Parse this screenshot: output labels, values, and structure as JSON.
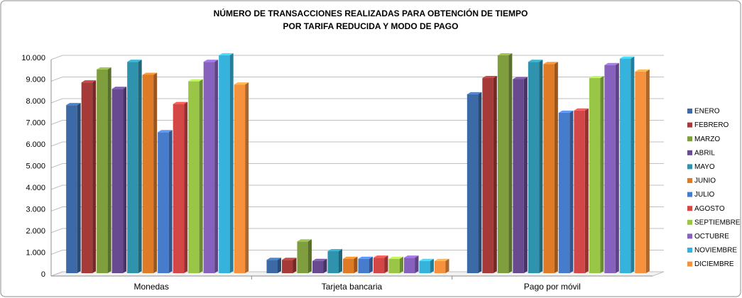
{
  "chart_data": {
    "type": "bar3d",
    "title": "NÚMERO DE TRANSACCIONES REALIZADAS PARA OBTENCIÓN DE TIEMPO",
    "subtitle": "POR TARIFA REDUCIDA Y MODO DE PAGO",
    "categories": [
      "Monedas",
      "Tarjeta bancaria",
      "Pago por móvil"
    ],
    "series": [
      {
        "name": "ENERO",
        "color": "#3b6aa6",
        "values": [
          7700,
          550,
          8200
        ]
      },
      {
        "name": "FEBRERO",
        "color": "#a63a38",
        "values": [
          8750,
          550,
          8950
        ]
      },
      {
        "name": "MARZO",
        "color": "#7f9f3e",
        "values": [
          9350,
          1400,
          10000
        ]
      },
      {
        "name": "ABRIL",
        "color": "#674a8f",
        "values": [
          8450,
          500,
          8900
        ]
      },
      {
        "name": "MAYO",
        "color": "#2f93ad",
        "values": [
          9700,
          950,
          9700
        ]
      },
      {
        "name": "JUNIO",
        "color": "#df7a26",
        "values": [
          9100,
          600,
          9600
        ]
      },
      {
        "name": "JULIO",
        "color": "#477ccc",
        "values": [
          6450,
          600,
          7350
        ]
      },
      {
        "name": "AGOSTO",
        "color": "#d34846",
        "values": [
          7750,
          650,
          7450
        ]
      },
      {
        "name": "SEPTIEMBRE",
        "color": "#9ac648",
        "values": [
          8800,
          600,
          8950
        ]
      },
      {
        "name": "OCTUBRE",
        "color": "#8661bd",
        "values": [
          9700,
          650,
          9550
        ]
      },
      {
        "name": "NOVIEMBRE",
        "color": "#35b3dc",
        "values": [
          10000,
          500,
          9850
        ]
      },
      {
        "name": "DICIEMBRE",
        "color": "#f6923e",
        "values": [
          8650,
          500,
          9250
        ]
      }
    ],
    "ylim": [
      0,
      10000
    ],
    "yticks": [
      0,
      {
        "value": 1000,
        "label": "1.000"
      },
      {
        "value": 2000,
        "label": "2.000"
      },
      {
        "value": 3000,
        "label": "3.000"
      },
      {
        "value": 4000,
        "label": "4.000"
      },
      {
        "value": 5000,
        "label": "5.000"
      },
      {
        "value": 6000,
        "label": "6.000"
      },
      {
        "value": 7000,
        "label": "7.000"
      },
      {
        "value": 8000,
        "label": "8.000"
      },
      {
        "value": 9000,
        "label": "9.000"
      },
      {
        "value": 10000,
        "label": "10.000"
      }
    ],
    "grid": true,
    "legend": "right"
  }
}
